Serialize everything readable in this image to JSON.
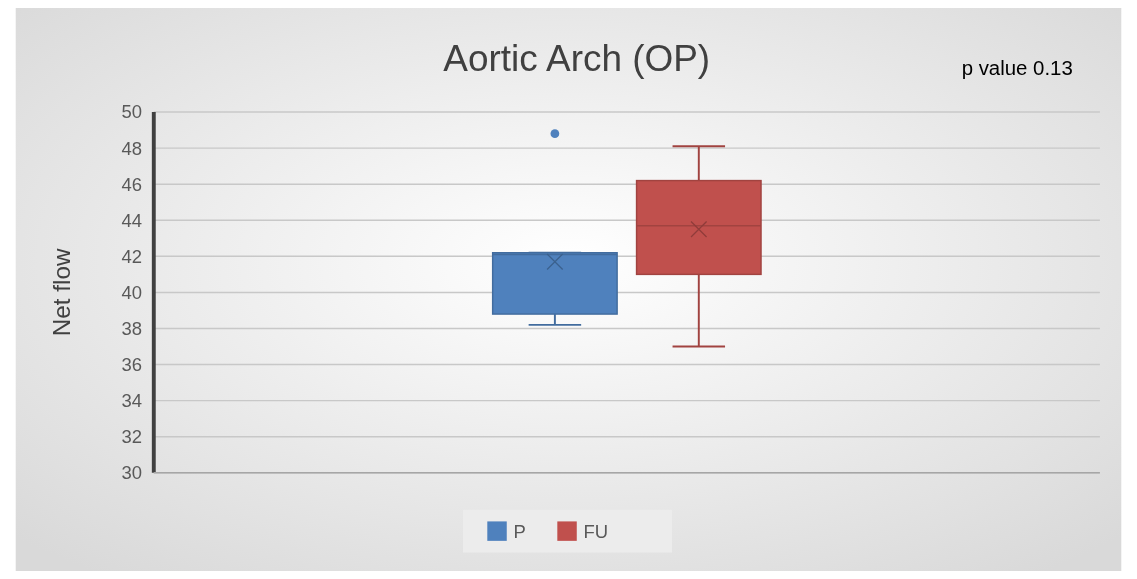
{
  "chart_data": {
    "type": "box",
    "title": "Aortic Arch (OP)",
    "ylabel": "Net flow",
    "annotations": [
      "p value 0.13"
    ],
    "categories": [
      null
    ],
    "series": [
      {
        "name": "P",
        "color": "#4f81bd",
        "boxes": [
          {
            "low": 38.2,
            "q1": 38.8,
            "median": 42.1,
            "q3": 42.2,
            "high": 42.2,
            "mean": 41.7,
            "outliers": [
              48.8
            ]
          }
        ]
      },
      {
        "name": "FU",
        "color": "#c0504d",
        "boxes": [
          {
            "low": 37.0,
            "q1": 41.0,
            "median": 43.7,
            "q3": 46.2,
            "high": 48.1,
            "mean": 43.5
          }
        ]
      }
    ],
    "ylim": [
      30,
      50
    ],
    "yticks": [
      30,
      32,
      34,
      36,
      38,
      40,
      42,
      44,
      46,
      48,
      50
    ],
    "grid": "y",
    "legend": "bottom",
    "marker": "cross"
  }
}
